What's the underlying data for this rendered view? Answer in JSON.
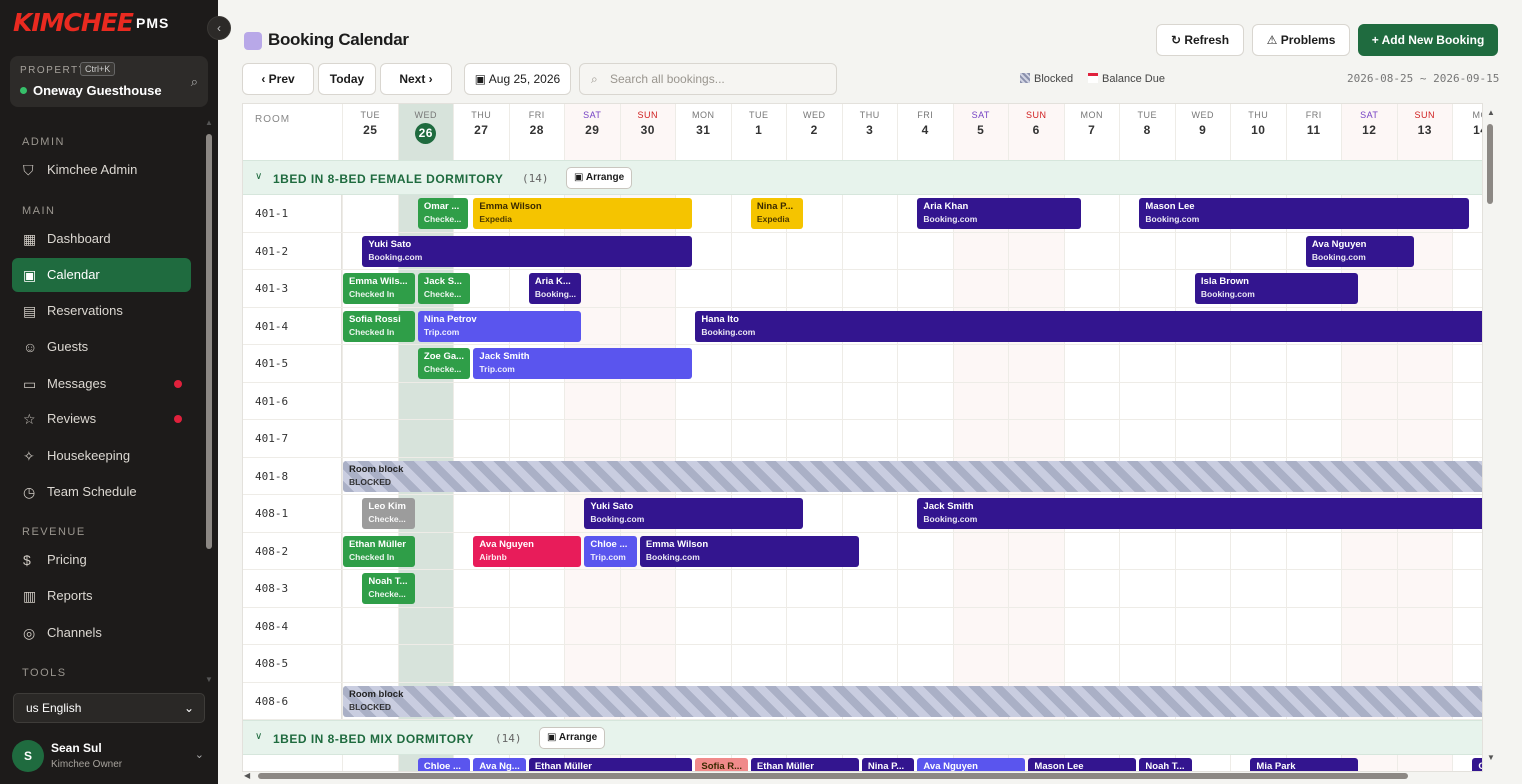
{
  "app": {
    "logo": "KIMCHEE",
    "logo_suffix": "PMS",
    "collapse_icon": "chevron-left"
  },
  "property": {
    "label": "PROPERTY",
    "shortcut": "Ctrl+K",
    "name": "Oneway Guesthouse"
  },
  "sidebar": {
    "admin_label": "ADMIN",
    "admin_item": "Kimchee Admin",
    "main_label": "MAIN",
    "items": [
      "Dashboard",
      "Calendar",
      "Reservations",
      "Guests",
      "Messages",
      "Reviews",
      "Housekeeping",
      "Team Schedule"
    ],
    "revenue_label": "REVENUE",
    "revenue_items": [
      "Pricing",
      "Reports",
      "Channels"
    ],
    "tools_label": "TOOLS"
  },
  "language": "us English",
  "user": {
    "initial": "S",
    "name": "Sean Sul",
    "role": "Kimchee Owner"
  },
  "header": {
    "title": "Booking Calendar",
    "refresh": "Refresh",
    "problems": "Problems",
    "add": "Add New Booking"
  },
  "toolbar": {
    "prev": "Prev",
    "today": "Today",
    "next": "Next",
    "date": "Aug 25, 2026",
    "search_placeholder": "Search all bookings...",
    "legend_blocked": "Blocked",
    "legend_balance": "Balance Due",
    "range": "2026-08-25 ~ 2026-09-15"
  },
  "grid": {
    "room_header": "ROOM",
    "days": [
      {
        "dow": "TUE",
        "num": "25"
      },
      {
        "dow": "WED",
        "num": "26"
      },
      {
        "dow": "THU",
        "num": "27"
      },
      {
        "dow": "FRI",
        "num": "28"
      },
      {
        "dow": "SAT",
        "num": "29"
      },
      {
        "dow": "SUN",
        "num": "30"
      },
      {
        "dow": "MON",
        "num": "31"
      },
      {
        "dow": "TUE",
        "num": "1"
      },
      {
        "dow": "WED",
        "num": "2"
      },
      {
        "dow": "THU",
        "num": "3"
      },
      {
        "dow": "FRI",
        "num": "4"
      },
      {
        "dow": "SAT",
        "num": "5"
      },
      {
        "dow": "SUN",
        "num": "6"
      },
      {
        "dow": "MON",
        "num": "7"
      },
      {
        "dow": "TUE",
        "num": "8"
      },
      {
        "dow": "WED",
        "num": "9"
      },
      {
        "dow": "THU",
        "num": "10"
      },
      {
        "dow": "FRI",
        "num": "11"
      },
      {
        "dow": "SAT",
        "num": "12"
      },
      {
        "dow": "SUN",
        "num": "13"
      },
      {
        "dow": "MO",
        "num": "14"
      }
    ],
    "groups": [
      {
        "name": "1BED IN 8-BED FEMALE DORMITORY",
        "count": "(14)",
        "arrange": "Arrange"
      },
      {
        "name": "1BED IN 8-BED MIX DORMITORY",
        "count": "(14)",
        "arrange": "Arrange"
      }
    ],
    "rooms": [
      "401-1",
      "401-2",
      "401-3",
      "401-4",
      "401-5",
      "401-6",
      "401-7",
      "401-8",
      "408-1",
      "408-2",
      "408-3",
      "408-4",
      "408-5",
      "408-6"
    ],
    "bookings": [
      {
        "guest": "Omar ...",
        "sub": "Checke...",
        "color": "#2f9e48"
      },
      {
        "guest": "Emma Wilson",
        "sub": "Expedia",
        "color": "#f5c400",
        "dark": true
      },
      {
        "guest": "Nina P...",
        "sub": "Expedia",
        "color": "#f5c400",
        "dark": true
      },
      {
        "guest": "Aria Khan",
        "sub": "Booking.com",
        "color": "#33158f"
      },
      {
        "guest": "Mason Lee",
        "sub": "Booking.com",
        "color": "#33158f"
      },
      {
        "guest": "Yuki Sato",
        "sub": "Booking.com",
        "color": "#33158f"
      },
      {
        "guest": "Ava Nguyen",
        "sub": "Booking.com",
        "color": "#33158f"
      },
      {
        "guest": "Emma Wils...",
        "sub": "Checked In",
        "color": "#2f9e48"
      },
      {
        "guest": "Jack S...",
        "sub": "Checke...",
        "color": "#2f9e48"
      },
      {
        "guest": "Aria K...",
        "sub": "Booking...",
        "color": "#33158f"
      },
      {
        "guest": "Isla Brown",
        "sub": "Booking.com",
        "color": "#33158f"
      },
      {
        "guest": "Sofia Rossi",
        "sub": "Checked In",
        "color": "#2f9e48"
      },
      {
        "guest": "Nina Petrov",
        "sub": "Trip.com",
        "color": "#5a55ee"
      },
      {
        "guest": "Hana Ito",
        "sub": "Booking.com",
        "color": "#33158f"
      },
      {
        "guest": "Zoe Ga...",
        "sub": "Checke...",
        "color": "#2f9e48"
      },
      {
        "guest": "Jack Smith",
        "sub": "Trip.com",
        "color": "#5a55ee"
      },
      {
        "guest": "Room block",
        "sub": "BLOCKED",
        "color": "blocked"
      },
      {
        "guest": "Leo Kim",
        "sub": "Checke...",
        "color": "#9c9c9c"
      },
      {
        "guest": "Yuki Sato",
        "sub": "Booking.com",
        "color": "#33158f"
      },
      {
        "guest": "Jack Smith",
        "sub": "Booking.com",
        "color": "#33158f"
      },
      {
        "guest": "Ethan Müller",
        "sub": "Checked In",
        "color": "#2f9e48"
      },
      {
        "guest": "Ava Nguyen",
        "sub": "Airbnb",
        "color": "#e81c5a"
      },
      {
        "guest": "Chloe ...",
        "sub": "Trip.com",
        "color": "#5a55ee"
      },
      {
        "guest": "Emma Wilson",
        "sub": "Booking.com",
        "color": "#33158f"
      },
      {
        "guest": "Noah T...",
        "sub": "Checke...",
        "color": "#2f9e48"
      },
      {
        "guest": "Room block",
        "sub": "BLOCKED",
        "color": "blocked"
      },
      {
        "guest": "Chloe ...",
        "sub": "",
        "color": "#5a55ee"
      },
      {
        "guest": "Ava Ng...",
        "sub": "",
        "color": "#5a55ee"
      },
      {
        "guest": "Ethan Müller",
        "sub": "",
        "color": "#33158f"
      },
      {
        "guest": "Sofia R...",
        "sub": "",
        "color": "#f08a8a",
        "dark": true
      },
      {
        "guest": "Ethan Müller",
        "sub": "",
        "color": "#33158f"
      },
      {
        "guest": "Nina P...",
        "sub": "",
        "color": "#33158f"
      },
      {
        "guest": "Ava Nguyen",
        "sub": "",
        "color": "#5a55ee"
      },
      {
        "guest": "Mason Lee",
        "sub": "",
        "color": "#33158f"
      },
      {
        "guest": "Noah T...",
        "sub": "",
        "color": "#33158f"
      },
      {
        "guest": "Mia Park",
        "sub": "",
        "color": "#33158f"
      },
      {
        "guest": "C...",
        "sub": "",
        "color": "#33158f"
      }
    ]
  }
}
